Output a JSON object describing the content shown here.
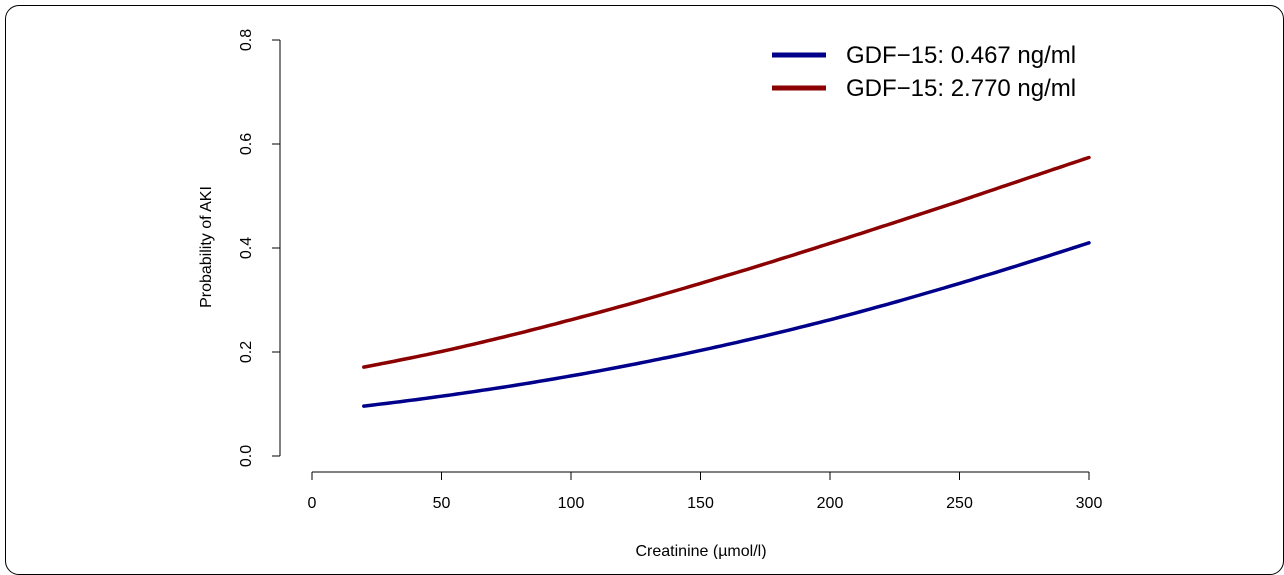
{
  "chart_data": {
    "type": "line",
    "title": "",
    "xlabel": "Creatinine (µmol/l)",
    "ylabel": "Probability of AKI",
    "xlim": [
      0,
      300
    ],
    "ylim": [
      0,
      0.8
    ],
    "x_ticks": [
      0,
      50,
      100,
      150,
      200,
      250,
      300
    ],
    "x_tick_labels": [
      "0",
      "50",
      "100",
      "150",
      "200",
      "250",
      "300"
    ],
    "y_ticks": [
      0,
      0.2,
      0.4,
      0.6,
      0.8
    ],
    "y_tick_labels": [
      "0.0",
      "0.2",
      "0.4",
      "0.6",
      "0.8"
    ],
    "grid": false,
    "legend_position": "top-right",
    "series": [
      {
        "name": "GDF−15: 0.467 ng/ml",
        "color": "#00008B",
        "x": [
          20,
          50,
          100,
          150,
          200,
          250,
          300
        ],
        "y": [
          0.096,
          0.115,
          0.154,
          0.203,
          0.262,
          0.332,
          0.41
        ]
      },
      {
        "name": "GDF−15: 2.770 ng/ml",
        "color": "#8B0000",
        "x": [
          20,
          50,
          100,
          150,
          200,
          250,
          300
        ],
        "y": [
          0.171,
          0.201,
          0.262,
          0.332,
          0.409,
          0.49,
          0.574
        ]
      }
    ]
  }
}
